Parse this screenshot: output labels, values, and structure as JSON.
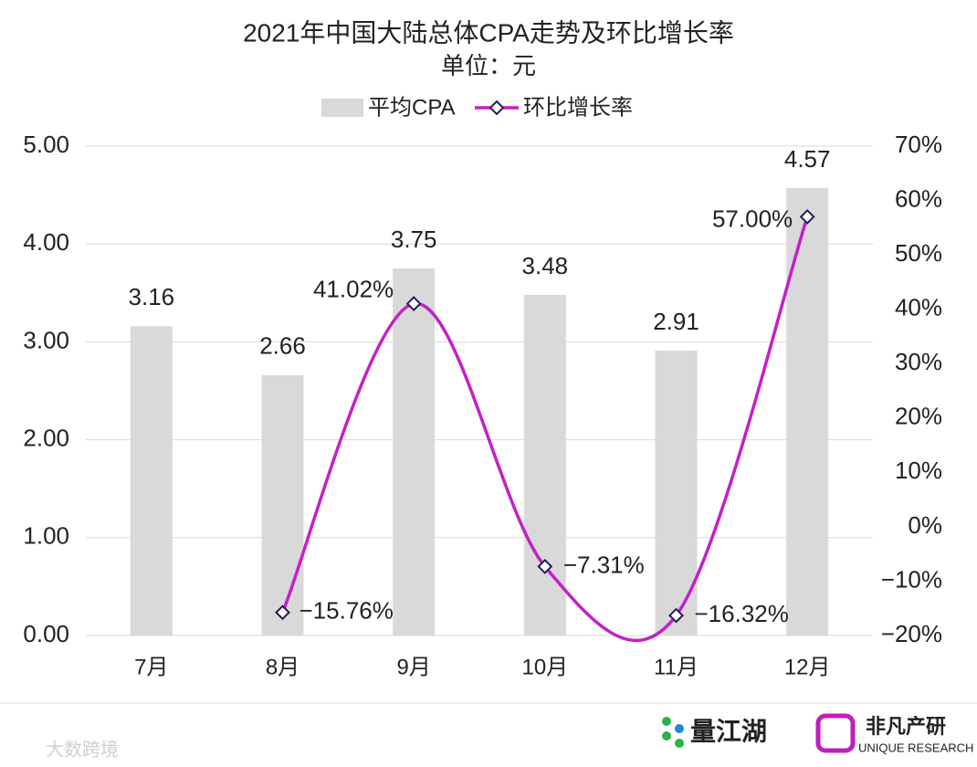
{
  "chart_data": {
    "type": "bar-line",
    "title": "2021年中国大陆总体CPA走势及环比增长率",
    "subtitle": "单位：元",
    "categories": [
      "7月",
      "8月",
      "9月",
      "10月",
      "11月",
      "12月"
    ],
    "series": [
      {
        "name": "平均CPA",
        "type": "bar",
        "color": "#d9d9d9",
        "values": [
          3.16,
          2.66,
          3.75,
          3.48,
          2.91,
          4.57
        ]
      },
      {
        "name": "环比增长率",
        "type": "line",
        "axis": "y2",
        "color": "#c41fc9",
        "marker_edge": "#1f1f5a",
        "values": [
          null,
          -15.76,
          41.02,
          -7.31,
          -16.32,
          57.0
        ],
        "value_labels": [
          null,
          "−15.76%",
          "41.02%",
          "−7.31%",
          "−16.32%",
          "57.00%"
        ]
      }
    ],
    "ylim": [
      0,
      5
    ],
    "yticks": [
      {
        "value": 0,
        "label": "0.00"
      },
      {
        "value": 1,
        "label": "1.00"
      },
      {
        "value": 2,
        "label": "2.00"
      },
      {
        "value": 3,
        "label": "3.00"
      },
      {
        "value": 4,
        "label": "4.00"
      },
      {
        "value": 5,
        "label": "5.00"
      }
    ],
    "y2lim": [
      -20,
      70
    ],
    "y2ticks": [
      {
        "value": -20,
        "label": "−20%"
      },
      {
        "value": -10,
        "label": "−10%"
      },
      {
        "value": 0,
        "label": "0%"
      },
      {
        "value": 10,
        "label": "10%"
      },
      {
        "value": 20,
        "label": "20%"
      },
      {
        "value": 30,
        "label": "30%"
      },
      {
        "value": 40,
        "label": "40%"
      },
      {
        "value": 50,
        "label": "50%"
      },
      {
        "value": 60,
        "label": "60%"
      },
      {
        "value": 70,
        "label": "70%"
      }
    ],
    "grid": true,
    "legend": "top"
  },
  "footer": {
    "watermark": "大数跨境",
    "logo1": "量江湖",
    "logo2": "非凡产研",
    "logo2_sub": "UNIQUE RESEARCH"
  }
}
